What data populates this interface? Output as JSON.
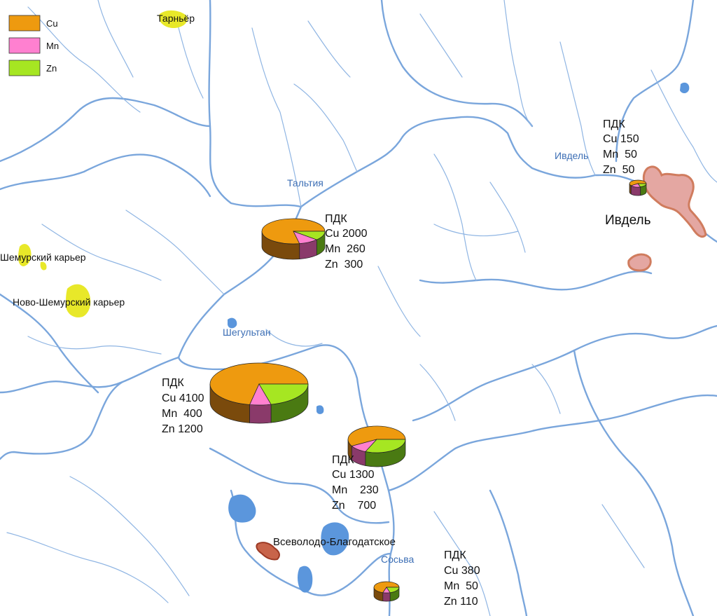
{
  "legend": {
    "items": [
      {
        "label": "Cu",
        "color": "#ee9a0f"
      },
      {
        "label": "Mn",
        "color": "#ff80d0"
      },
      {
        "label": "Zn",
        "color": "#a6e622"
      }
    ]
  },
  "colors": {
    "cu_side": "#7a4a0c",
    "mn_side": "#8a3a6a",
    "zn_side": "#4a7a12",
    "river": "#7aa6dc",
    "lake": "#5b96dc",
    "quarry": "#e8e829",
    "town_fill": "#e4a7a2",
    "town_outline": "#d07c5e",
    "deposit": "#c8644a"
  },
  "rivers": [
    "Тальтия",
    "Ивдель",
    "Шегультан",
    "Сосьва"
  ],
  "places": {
    "tarnyer": "Тарньёр",
    "shemursky": "Шемурский карьер",
    "novo_shemursky": "Ново-Шемурский карьер",
    "vsevolodo": "Всеволодо-Благодатское",
    "ivdel_town": "Ивдель"
  },
  "stations": [
    {
      "title": "ПДК",
      "cu": "Cu 2000",
      "mn": "Mn  260",
      "zn": "Zn  300",
      "values": {
        "Cu": 2000,
        "Mn": 260,
        "Zn": 300
      }
    },
    {
      "title": "ПДК",
      "cu": "Cu 150",
      "mn": "Mn  50",
      "zn": "Zn  50",
      "values": {
        "Cu": 150,
        "Mn": 50,
        "Zn": 50
      }
    },
    {
      "title": "ПДК",
      "cu": "Cu 4100",
      "mn": "Mn  400",
      "zn": "Zn 1200",
      "values": {
        "Cu": 4100,
        "Mn": 400,
        "Zn": 1200
      }
    },
    {
      "title": "ПДК",
      "cu": "Cu 1300",
      "mn": "Mn    230",
      "zn": "Zn    700",
      "values": {
        "Cu": 1300,
        "Mn": 230,
        "Zn": 700
      }
    },
    {
      "title": "ПДК",
      "cu": "Cu 380",
      "mn": "Mn  50",
      "zn": "Zn 110",
      "values": {
        "Cu": 380,
        "Mn": 50,
        "Zn": 110
      }
    }
  ]
}
